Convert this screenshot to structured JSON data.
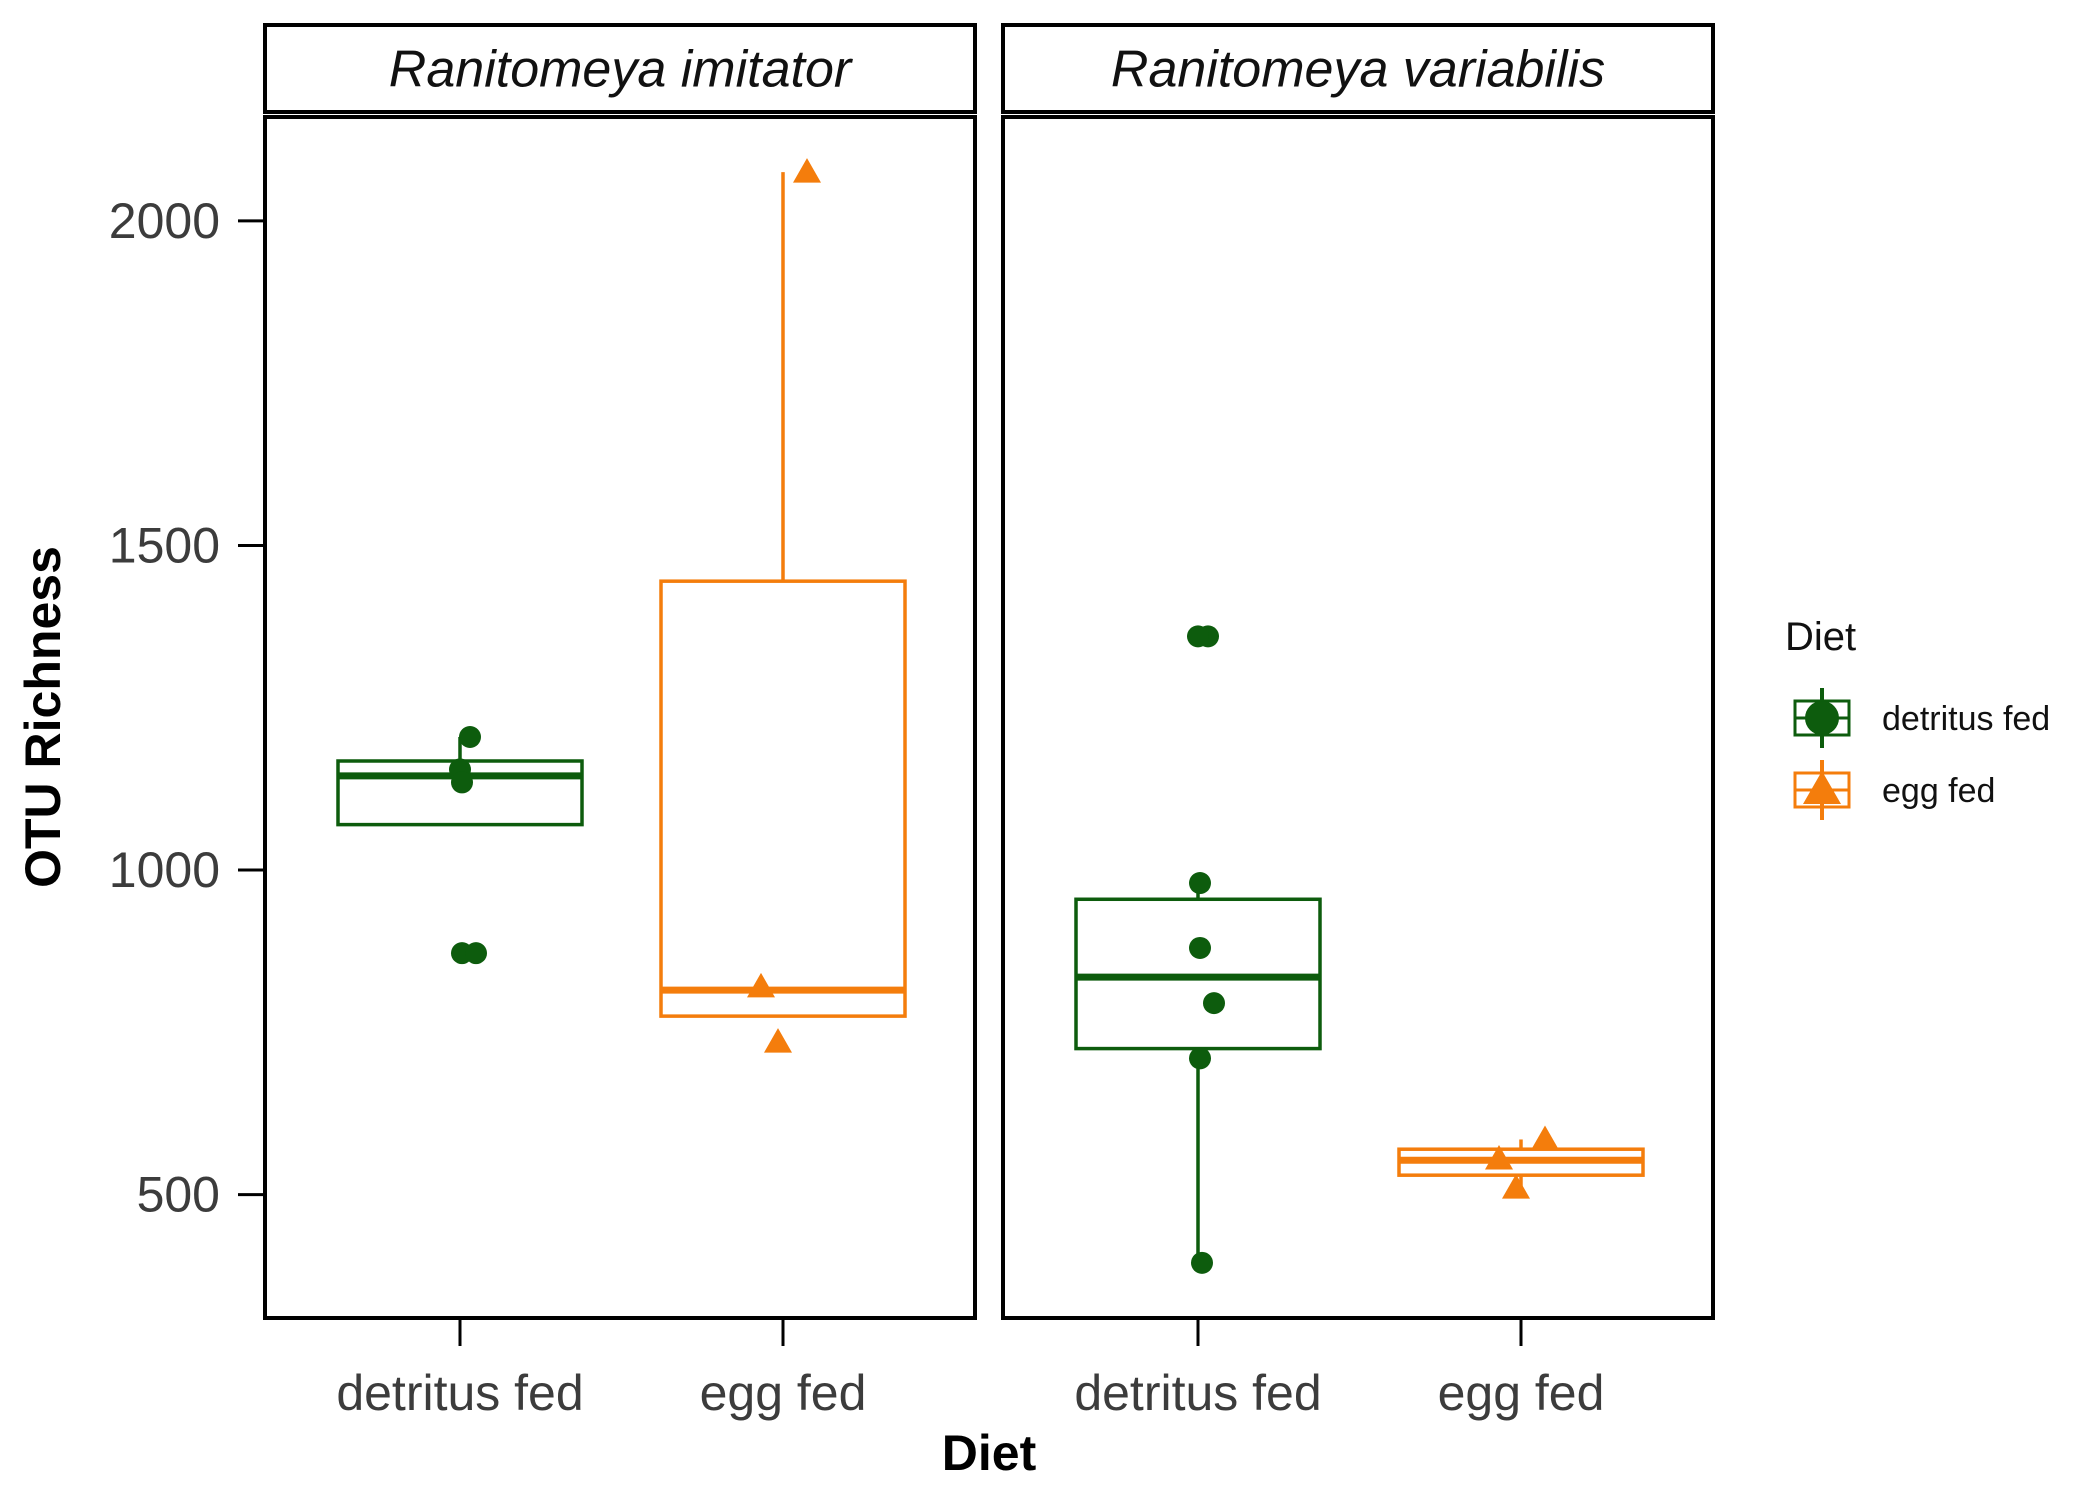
{
  "chart_data": {
    "type": "boxplot",
    "xlabel": "Diet",
    "ylabel": "OTU Richness",
    "ylim": [
      310,
      2160
    ],
    "yticks": [
      500,
      1000,
      1500,
      2000
    ],
    "categories": [
      "detritus fed",
      "egg fed"
    ],
    "facets": [
      {
        "label": "Ranitomeya imitator",
        "groups": [
          {
            "category": "detritus fed",
            "box": {
              "q1": 1070,
              "median": 1145,
              "q3": 1168,
              "whisker_low": 1070,
              "whisker_high": 1205
            },
            "points": [
              1205,
              1155,
              1135,
              872,
              872
            ]
          },
          {
            "category": "egg fed",
            "box": {
              "q1": 775,
              "median": 815,
              "q3": 1445,
              "whisker_low": 775,
              "whisker_high": 2075
            },
            "points": [
              2075,
              820,
              735
            ]
          }
        ]
      },
      {
        "label": "Ranitomeya variabilis",
        "groups": [
          {
            "category": "detritus fed",
            "box": {
              "q1": 725,
              "median": 835,
              "q3": 955,
              "whisker_low": 395,
              "whisker_high": 980
            },
            "points": [
              1360,
              1360,
              980,
              880,
              795,
              710,
              395
            ]
          },
          {
            "category": "egg fed",
            "box": {
              "q1": 530,
              "median": 553,
              "q3": 570,
              "whisker_low": 510,
              "whisker_high": 585
            },
            "points": [
              585,
              555,
              510
            ]
          }
        ]
      }
    ],
    "legend": {
      "title": "Diet",
      "position": "right",
      "items": [
        {
          "label": "detritus fed",
          "shape": "circle",
          "color": "#0d5c0d"
        },
        {
          "label": "egg fed",
          "shape": "triangle",
          "color": "#f47d0c"
        }
      ]
    },
    "colors": {
      "detritus fed": "#0d5c0d",
      "egg fed": "#f47d0c"
    },
    "grid": false
  }
}
